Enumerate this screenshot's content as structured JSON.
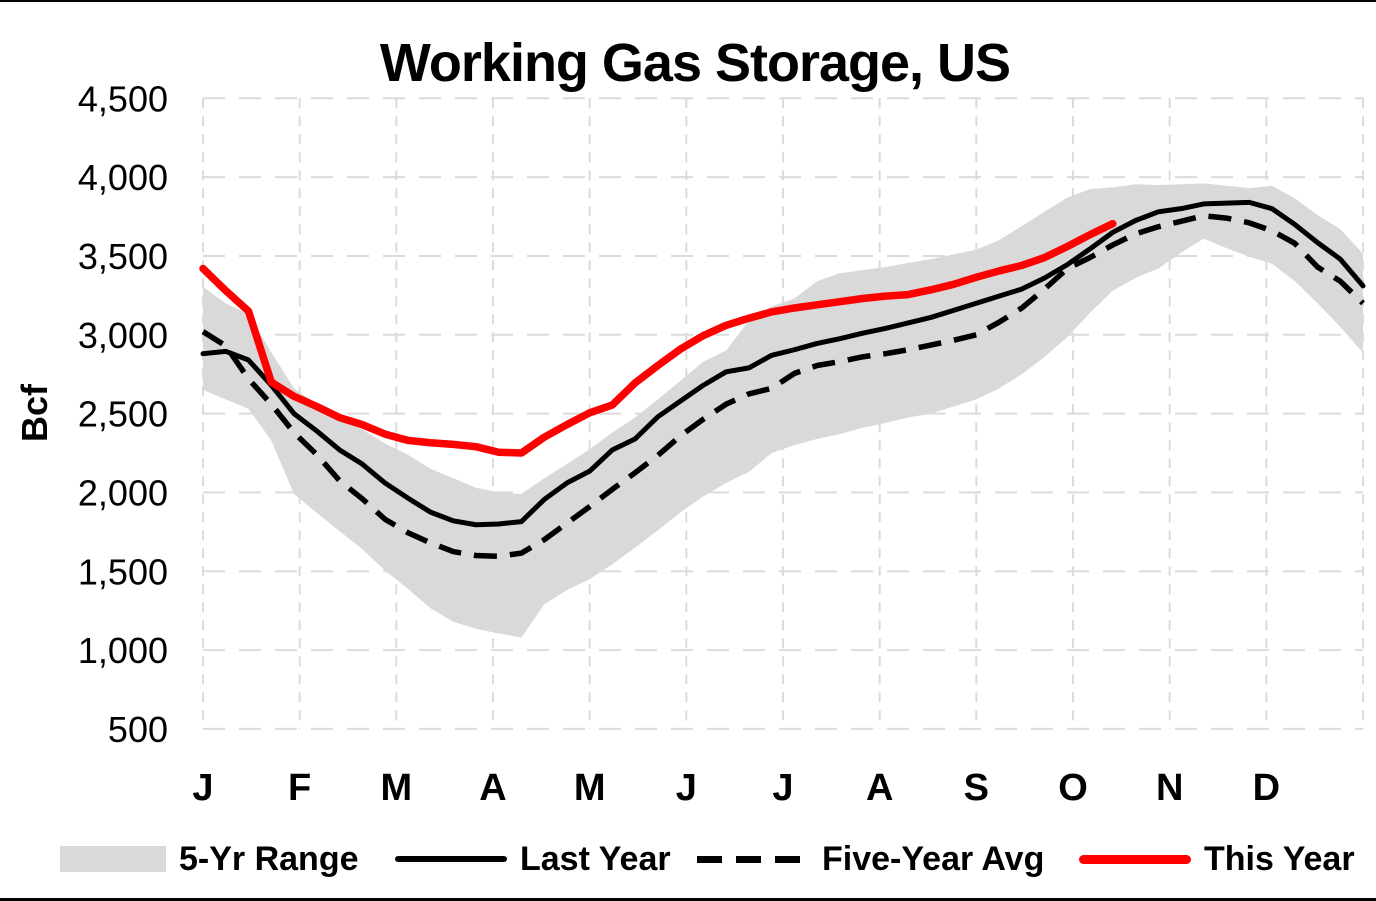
{
  "title": "Working Gas Storage, US",
  "y_axis": {
    "title": "Bcf",
    "tick_labels": [
      "4,500",
      "4,000",
      "3,500",
      "3,000",
      "2,500",
      "2,000",
      "1,500",
      "1,000",
      "500"
    ],
    "min": 500,
    "max": 4500,
    "step": 500
  },
  "x_axis": {
    "labels": [
      "J",
      "F",
      "M",
      "A",
      "M",
      "J",
      "J",
      "A",
      "S",
      "O",
      "N",
      "D"
    ]
  },
  "legend": [
    {
      "label": "5-Yr Range",
      "swatch": "area",
      "color": "#D9D9D9"
    },
    {
      "label": "Last Year",
      "swatch": "solid-line",
      "color": "#000000"
    },
    {
      "label": "Five-Year Avg",
      "swatch": "dashed-line",
      "color": "#000000"
    },
    {
      "label": "This Year",
      "swatch": "solid-line",
      "color": "#FF0000"
    }
  ],
  "colors": {
    "band": "#D9D9D9",
    "gridline": "#DBDBDB",
    "last_year": "#000000",
    "five_year_avg": "#000000",
    "this_year": "#FF0000",
    "frame": "#000000"
  },
  "chart_data": {
    "type": "line",
    "title": "Working Gas Storage, US",
    "ylabel": "Bcf",
    "ylim": [
      500,
      4500
    ],
    "ytick_step": 500,
    "grid": true,
    "legend_position": "bottom",
    "x": {
      "unit": "week-of-year",
      "start": 1,
      "end": 52
    },
    "x_month_labels": [
      "J",
      "F",
      "M",
      "A",
      "M",
      "J",
      "J",
      "A",
      "S",
      "O",
      "N",
      "D"
    ],
    "band": {
      "name": "5-Yr Range",
      "color": "#D9D9D9",
      "upper": [
        3305,
        3200,
        3130,
        2890,
        2660,
        2560,
        2465,
        2400,
        2310,
        2240,
        2150,
        2090,
        2030,
        2000,
        1990,
        2090,
        2180,
        2275,
        2380,
        2475,
        2590,
        2710,
        2830,
        2900,
        3090,
        3180,
        3230,
        3340,
        3390,
        3410,
        3430,
        3455,
        3480,
        3510,
        3540,
        3600,
        3690,
        3780,
        3870,
        3925,
        3935,
        3955,
        3950,
        3955,
        3960,
        3945,
        3930,
        3945,
        3865,
        3760,
        3670,
        3515
      ],
      "lower": [
        2650,
        2590,
        2530,
        2330,
        1990,
        1870,
        1755,
        1640,
        1505,
        1390,
        1265,
        1180,
        1135,
        1105,
        1080,
        1290,
        1380,
        1450,
        1545,
        1650,
        1760,
        1875,
        1975,
        2060,
        2130,
        2250,
        2300,
        2340,
        2370,
        2410,
        2440,
        2475,
        2500,
        2545,
        2590,
        2660,
        2750,
        2860,
        2985,
        3140,
        3280,
        3360,
        3420,
        3520,
        3610,
        3550,
        3495,
        3450,
        3340,
        3200,
        3050,
        2885
      ]
    },
    "series": [
      {
        "name": "Last Year",
        "style": "solid",
        "color": "#000000",
        "start_week": 1,
        "values": [
          2880,
          2895,
          2840,
          2680,
          2500,
          2390,
          2270,
          2180,
          2060,
          1965,
          1875,
          1820,
          1795,
          1800,
          1815,
          1955,
          2060,
          2135,
          2270,
          2340,
          2480,
          2580,
          2680,
          2765,
          2790,
          2870,
          2905,
          2945,
          2975,
          3010,
          3040,
          3075,
          3110,
          3155,
          3200,
          3245,
          3290,
          3360,
          3445,
          3545,
          3650,
          3725,
          3780,
          3800,
          3830,
          3835,
          3840,
          3800,
          3700,
          3585,
          3480,
          3310
        ]
      },
      {
        "name": "Five-Year Avg",
        "style": "dashed",
        "color": "#000000",
        "start_week": 1,
        "values": [
          3020,
          2930,
          2720,
          2560,
          2380,
          2240,
          2075,
          1960,
          1830,
          1745,
          1680,
          1625,
          1600,
          1595,
          1615,
          1700,
          1805,
          1910,
          2020,
          2125,
          2235,
          2360,
          2465,
          2560,
          2625,
          2660,
          2755,
          2805,
          2830,
          2860,
          2880,
          2905,
          2935,
          2965,
          3000,
          3080,
          3170,
          3290,
          3420,
          3490,
          3570,
          3640,
          3685,
          3720,
          3755,
          3740,
          3710,
          3660,
          3580,
          3430,
          3340,
          3200
        ]
      },
      {
        "name": "This Year",
        "style": "solid",
        "color": "#FF0000",
        "start_week": 1,
        "ends_week": 41,
        "values": [
          3420,
          3280,
          3150,
          2700,
          2610,
          2545,
          2475,
          2430,
          2370,
          2330,
          2315,
          2305,
          2290,
          2255,
          2250,
          2350,
          2430,
          2505,
          2555,
          2695,
          2805,
          2910,
          2995,
          3060,
          3105,
          3145,
          3170,
          3190,
          3210,
          3230,
          3245,
          3255,
          3285,
          3320,
          3365,
          3405,
          3440,
          3490,
          3560,
          3635,
          3705
        ]
      }
    ]
  }
}
